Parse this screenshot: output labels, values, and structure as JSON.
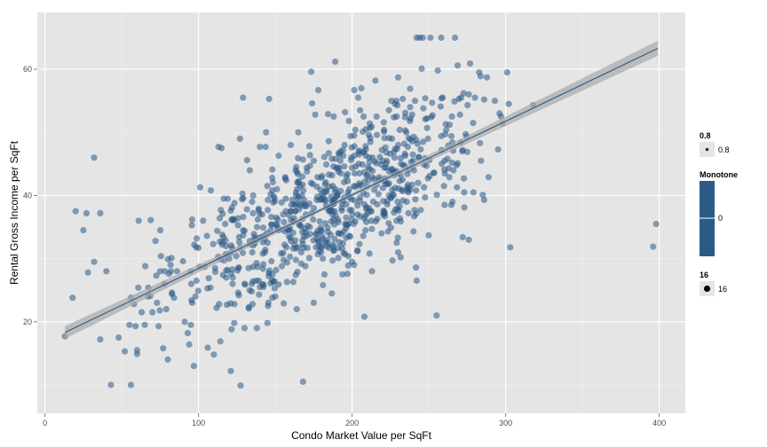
{
  "chart_data": {
    "type": "scatter",
    "xlabel": "Condo Market Value per SqFt",
    "ylabel": "Rental Gross Income per SqFt",
    "xlim": [
      -5,
      417
    ],
    "ylim": [
      5.5,
      69
    ],
    "x_ticks": [
      0,
      100,
      200,
      300,
      400
    ],
    "y_ticks": [
      20,
      40,
      60
    ],
    "grid": true,
    "point_color": "#2b5a87",
    "point_alpha": 0.55,
    "smooth": {
      "method": "linear",
      "color": "#2b5a87",
      "band_color": "#a9a9a9",
      "band_alpha": 0.7,
      "x_start": 13,
      "x_end": 399,
      "y_start": 18.3,
      "y_end": 63.3,
      "se_start": 1.0,
      "se_mid": 0.25,
      "se_end": 1.2
    },
    "legends": [
      {
        "title": "0.8",
        "label": "0.8",
        "kind": "alpha"
      },
      {
        "title": "Monotone",
        "label": "0",
        "kind": "color"
      },
      {
        "title": "16",
        "label": "16",
        "kind": "size"
      }
    ],
    "highlighted_points": [
      [
        13,
        17.7
      ],
      [
        18,
        23.8
      ],
      [
        20,
        37.5
      ],
      [
        25,
        34.5
      ],
      [
        27,
        37.2
      ],
      [
        28,
        27.8
      ],
      [
        32,
        29.5
      ],
      [
        32,
        46.0
      ],
      [
        36,
        37.2
      ],
      [
        36,
        17.2
      ],
      [
        40,
        28.0
      ],
      [
        43,
        10.0
      ],
      [
        48,
        17.5
      ],
      [
        52,
        15.3
      ],
      [
        55,
        19.5
      ],
      [
        56,
        23.8
      ],
      [
        56,
        10.0
      ],
      [
        58,
        22.8
      ],
      [
        59,
        19.3
      ],
      [
        60,
        15.5
      ],
      [
        60,
        14.9
      ],
      [
        61,
        36.0
      ],
      [
        63,
        21.5
      ],
      [
        65,
        19.5
      ],
      [
        67,
        24.0
      ],
      [
        70,
        21.5
      ],
      [
        72,
        32.8
      ],
      [
        73,
        23.0
      ],
      [
        74,
        19.3
      ],
      [
        75,
        28.0
      ],
      [
        77,
        15.8
      ],
      [
        78,
        28.0
      ],
      [
        79,
        22.0
      ],
      [
        80,
        14.0
      ],
      [
        82,
        28.0
      ],
      [
        84,
        23.8
      ],
      [
        86,
        28.0
      ],
      [
        91,
        20.0
      ],
      [
        93,
        18.2
      ],
      [
        95,
        28.0
      ],
      [
        95,
        19.5
      ],
      [
        97,
        13.0
      ],
      [
        98,
        24.0
      ],
      [
        101,
        41.3
      ],
      [
        103,
        36.0
      ],
      [
        106,
        15.9
      ],
      [
        108,
        40.8
      ],
      [
        110,
        14.8
      ],
      [
        113,
        47.7
      ],
      [
        115,
        47.5
      ],
      [
        118,
        27.0
      ],
      [
        121,
        12.2
      ],
      [
        127,
        49.0
      ],
      [
        129,
        55.5
      ],
      [
        130,
        19.0
      ],
      [
        138,
        19.0
      ],
      [
        140,
        47.7
      ],
      [
        144,
        50.0
      ],
      [
        146,
        55.3
      ],
      [
        160,
        48.0
      ],
      [
        165,
        50.0
      ],
      [
        168,
        10.5
      ],
      [
        174,
        54.6
      ],
      [
        176,
        52.8
      ],
      [
        178,
        56.7
      ],
      [
        188,
        52.5
      ],
      [
        189,
        61.2
      ],
      [
        198,
        51.8
      ],
      [
        204,
        55.5
      ],
      [
        206,
        57.0
      ],
      [
        216,
        52.5
      ],
      [
        224,
        53.5
      ],
      [
        229,
        52.5
      ],
      [
        230,
        58.7
      ],
      [
        233,
        55.3
      ],
      [
        241,
        55.0
      ],
      [
        242,
        65.0
      ],
      [
        244,
        65.0
      ],
      [
        246,
        65.0
      ],
      [
        251,
        65.0
      ],
      [
        258,
        65.0
      ],
      [
        259,
        55.5
      ],
      [
        265,
        52.5
      ],
      [
        267,
        65.0
      ],
      [
        271,
        55.5
      ],
      [
        276,
        56.0
      ],
      [
        280,
        55.5
      ],
      [
        286,
        55.2
      ],
      [
        293,
        55.0
      ],
      [
        295,
        47.3
      ],
      [
        296,
        53.0
      ],
      [
        297,
        52.5
      ],
      [
        298,
        51.4
      ],
      [
        301,
        59.5
      ],
      [
        302,
        54.5
      ],
      [
        303,
        31.8
      ],
      [
        318,
        54.3
      ],
      [
        396,
        31.9
      ],
      [
        398,
        35.5
      ],
      [
        255,
        21.0
      ],
      [
        208,
        20.8
      ],
      [
        175,
        23.0
      ],
      [
        181,
        25.8
      ],
      [
        272,
        33.4
      ],
      [
        273,
        40.5
      ],
      [
        276,
        33.0
      ],
      [
        279,
        40.5
      ],
      [
        284,
        45.5
      ],
      [
        286,
        39.3
      ],
      [
        242,
        26.5
      ],
      [
        240,
        34.3
      ],
      [
        230,
        31.0
      ],
      [
        213,
        28.0
      ],
      [
        200,
        29.5
      ],
      [
        164,
        22.0
      ],
      [
        150,
        24.0
      ],
      [
        140,
        25.5
      ],
      [
        130,
        26.0
      ],
      [
        120,
        30.0
      ]
    ],
    "n_cloud_points": 760,
    "cloud_seed": 20240611
  }
}
